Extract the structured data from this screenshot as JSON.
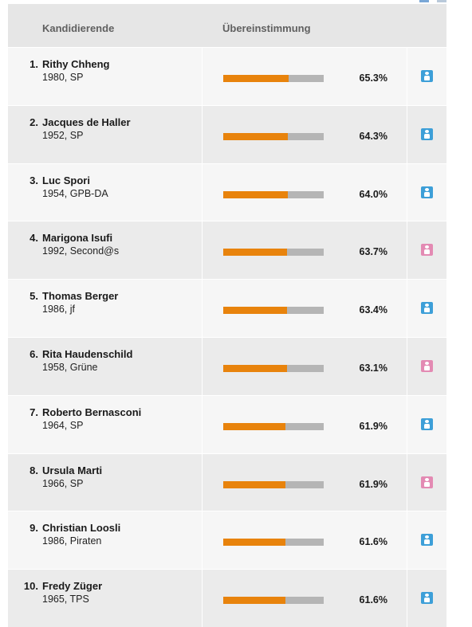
{
  "header": {
    "candidates_label": "Kandidierende",
    "match_label": "Übereinstimmung"
  },
  "colors": {
    "bar_fill": "#e8830c",
    "bar_track": "#b5b5b5",
    "male_icon": "#3d9fd8",
    "female_icon": "#e38ab3"
  },
  "candidates": [
    {
      "rank": "1.",
      "name": "Rithy Chheng",
      "meta": "1980, SP",
      "match": 65.3,
      "match_label": "65.3%",
      "icon": "male-person-icon"
    },
    {
      "rank": "2.",
      "name": "Jacques de Haller",
      "meta": "1952, SP",
      "match": 64.3,
      "match_label": "64.3%",
      "icon": "male-person-icon"
    },
    {
      "rank": "3.",
      "name": "Luc Spori",
      "meta": "1954, GPB-DA",
      "match": 64.0,
      "match_label": "64.0%",
      "icon": "male-person-icon"
    },
    {
      "rank": "4.",
      "name": "Marigona Isufi",
      "meta": "1992, Second@s",
      "match": 63.7,
      "match_label": "63.7%",
      "icon": "female-person-icon"
    },
    {
      "rank": "5.",
      "name": "Thomas Berger",
      "meta": "1986, jf",
      "match": 63.4,
      "match_label": "63.4%",
      "icon": "male-person-icon"
    },
    {
      "rank": "6.",
      "name": "Rita Haudenschild",
      "meta": "1958, Grüne",
      "match": 63.1,
      "match_label": "63.1%",
      "icon": "female-person-icon"
    },
    {
      "rank": "7.",
      "name": "Roberto Bernasconi",
      "meta": "1964, SP",
      "match": 61.9,
      "match_label": "61.9%",
      "icon": "male-person-icon"
    },
    {
      "rank": "8.",
      "name": "Ursula Marti",
      "meta": "1966, SP",
      "match": 61.9,
      "match_label": "61.9%",
      "icon": "female-person-icon"
    },
    {
      "rank": "9.",
      "name": "Christian Loosli",
      "meta": "1986, Piraten",
      "match": 61.6,
      "match_label": "61.6%",
      "icon": "male-person-icon"
    },
    {
      "rank": "10.",
      "name": "Fredy Züger",
      "meta": "1965, TPS",
      "match": 61.6,
      "match_label": "61.6%",
      "icon": "male-person-icon"
    }
  ]
}
